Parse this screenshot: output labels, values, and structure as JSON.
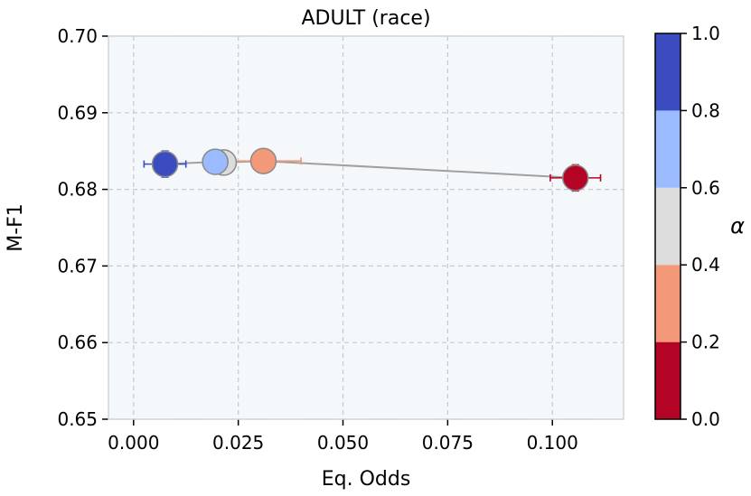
{
  "chart_data": {
    "type": "scatter",
    "title": "ADULT (race)",
    "xlabel": "Eq. Odds",
    "ylabel": "M-F1",
    "xlim": [
      -0.006,
      0.117
    ],
    "ylim": [
      0.65,
      0.7
    ],
    "xticks": [
      "0.000",
      "0.025",
      "0.050",
      "0.075",
      "0.100"
    ],
    "xtick_values": [
      0.0,
      0.025,
      0.05,
      0.075,
      0.1
    ],
    "yticks": [
      "0.65",
      "0.66",
      "0.67",
      "0.68",
      "0.69",
      "0.70"
    ],
    "ytick_values": [
      0.65,
      0.66,
      0.67,
      0.68,
      0.69,
      0.7
    ],
    "grid": true,
    "background_color": "#f4f8fa",
    "line_color": "#a0a0a0",
    "points": [
      {
        "alpha": 0.0,
        "x": 0.1055,
        "y": 0.6815,
        "xerr": 0.006,
        "yerr": 0.0017,
        "color": "#b40426"
      },
      {
        "alpha": 0.2,
        "x": 0.031,
        "y": 0.6837,
        "xerr": 0.009,
        "yerr": 0.0015,
        "color": "#f4987a"
      },
      {
        "alpha": 0.4,
        "x": 0.0215,
        "y": 0.6835,
        "xerr": 0.003,
        "yerr": 0.0014,
        "color": "#dddcdc"
      },
      {
        "alpha": 0.6,
        "x": 0.0195,
        "y": 0.6836,
        "xerr": 0.003,
        "yerr": 0.0014,
        "color": "#9abbff"
      },
      {
        "alpha": 0.8,
        "x": 0.0075,
        "y": 0.6833,
        "xerr": 0.005,
        "yerr": 0.0017,
        "color": "#3b4cc0"
      }
    ],
    "colorbar": {
      "label": "α",
      "ticks": [
        "0.0",
        "0.2",
        "0.4",
        "0.6",
        "0.8",
        "1.0"
      ],
      "tick_values": [
        0.0,
        0.2,
        0.4,
        0.6,
        0.8,
        1.0
      ],
      "colors": [
        "#b40426",
        "#f4987a",
        "#dddcdc",
        "#9abbff",
        "#3b4cc0"
      ]
    }
  }
}
